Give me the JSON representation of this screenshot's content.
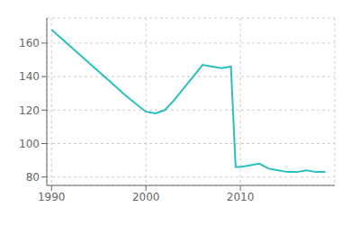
{
  "chart_data": {
    "type": "line",
    "x": [
      1990,
      1992,
      1994,
      1996,
      1998,
      2000,
      2001,
      2002,
      2003,
      2004,
      2005,
      2006,
      2007,
      2008,
      2009,
      2009.5,
      2010,
      2011,
      2012,
      2013,
      2014,
      2015,
      2016,
      2017,
      2018,
      2019
    ],
    "values": [
      168,
      158,
      148,
      138,
      128,
      119,
      118,
      120,
      126,
      133,
      140,
      147,
      146,
      145,
      146,
      86,
      86,
      87,
      88,
      85,
      84,
      83,
      83,
      84,
      83,
      83
    ],
    "color": "#2abfbf",
    "xlim": [
      1989.5,
      2020
    ],
    "ylim": [
      75,
      175
    ],
    "xticks": [
      1990,
      2000,
      2010
    ],
    "yticks": [
      80,
      100,
      120,
      140,
      160
    ],
    "grid": true
  }
}
